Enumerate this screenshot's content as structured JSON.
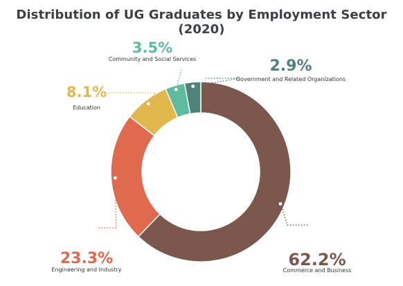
{
  "title": "Distribution of UG Graduates by Employment Sector (2020)",
  "chart_data": {
    "type": "pie",
    "donut": true,
    "title": "Distribution of UG Graduates by Employment Sector (2020)",
    "slices": [
      {
        "label": "Commerce and Business",
        "value": 62.2,
        "display": "62.2%",
        "color": "#7b574d"
      },
      {
        "label": "Engineering and Industry",
        "value": 23.3,
        "display": "23.3%",
        "color": "#e06a4e"
      },
      {
        "label": "Education",
        "value": 8.1,
        "display": "8.1%",
        "color": "#e0b84e"
      },
      {
        "label": "Community and Social Services",
        "value": 3.5,
        "display": "3.5%",
        "color": "#5dbba0"
      },
      {
        "label": "Government and Related Organizations",
        "value": 2.9,
        "display": "2.9%",
        "color": "#4f8279"
      }
    ]
  }
}
